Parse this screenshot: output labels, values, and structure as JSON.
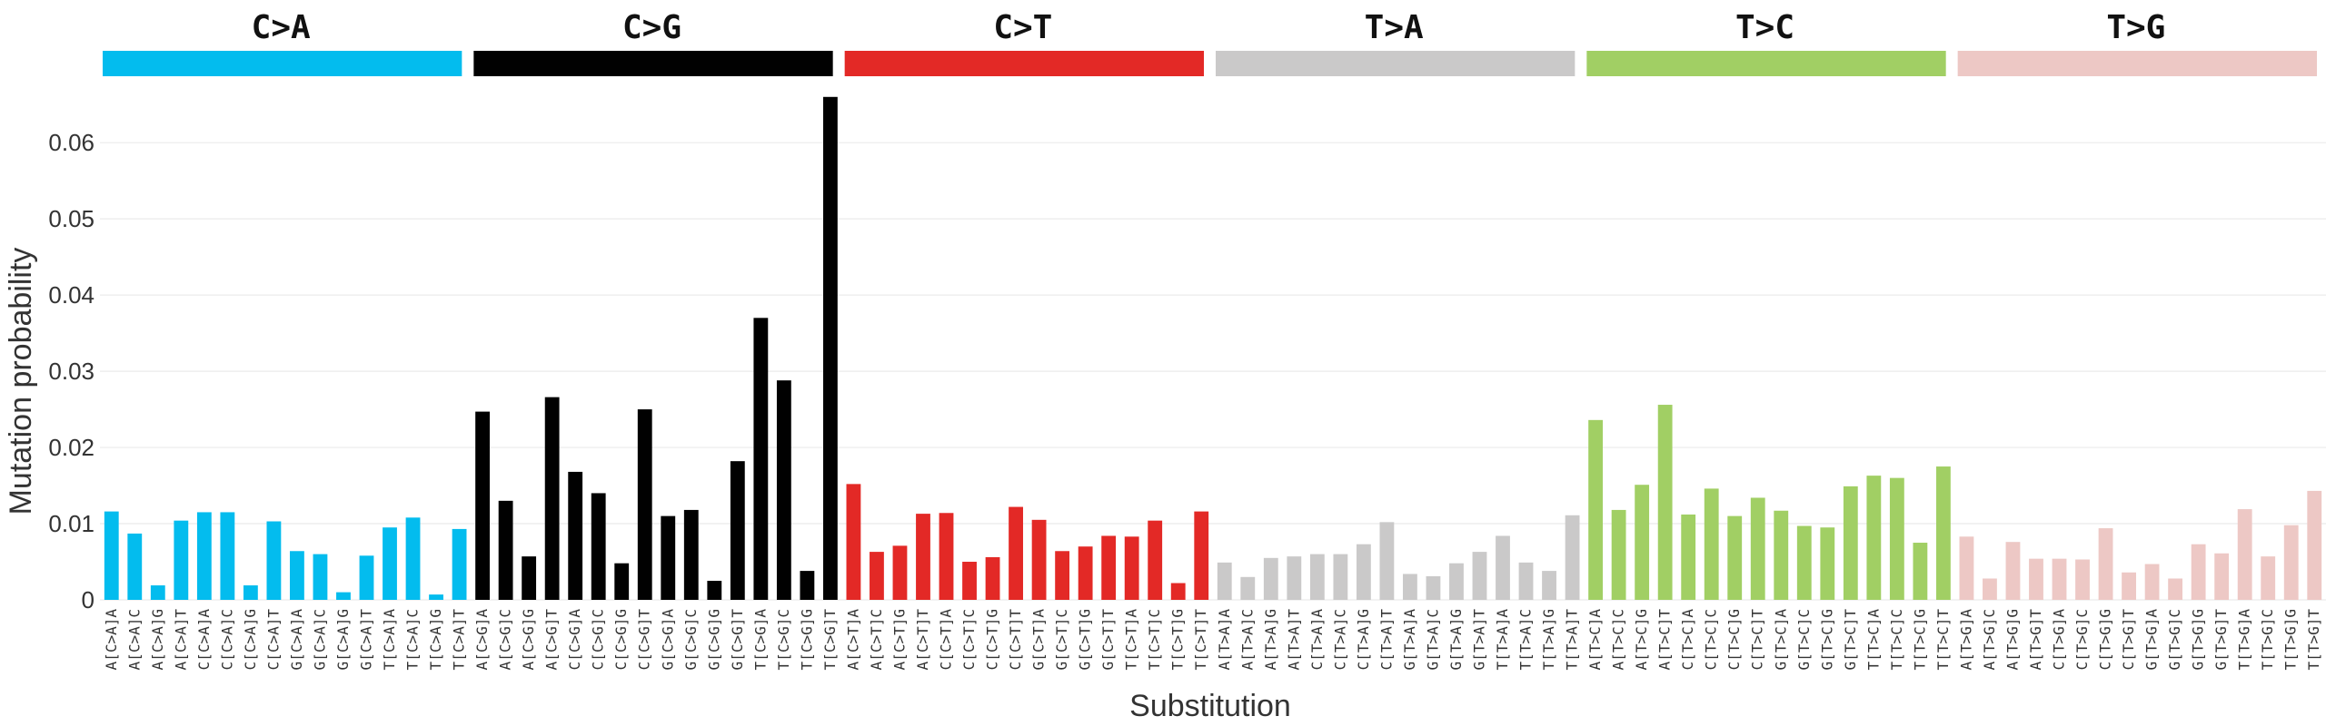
{
  "chart_data": {
    "type": "bar",
    "xlabel": "Substitution",
    "ylabel": "Mutation probability",
    "ylim": [
      0,
      0.068
    ],
    "yticks": [
      0,
      0.01,
      0.02,
      0.03,
      0.04,
      0.05,
      0.06
    ],
    "ytick_labels": [
      "0",
      "0.01",
      "0.02",
      "0.03",
      "0.04",
      "0.05",
      "0.06"
    ],
    "grid": true,
    "groups": [
      {
        "name": "C>A",
        "color": "#03BCEE",
        "categories": [
          "A[C>A]A",
          "A[C>A]C",
          "A[C>A]G",
          "A[C>A]T",
          "C[C>A]A",
          "C[C>A]C",
          "C[C>A]G",
          "C[C>A]T",
          "G[C>A]A",
          "G[C>A]C",
          "G[C>A]G",
          "G[C>A]T",
          "T[C>A]A",
          "T[C>A]C",
          "T[C>A]G",
          "T[C>A]T"
        ],
        "values": [
          0.0116,
          0.0087,
          0.0019,
          0.0104,
          0.0115,
          0.0115,
          0.0019,
          0.0103,
          0.0064,
          0.006,
          0.001,
          0.0058,
          0.0095,
          0.0108,
          0.0007,
          0.0093
        ]
      },
      {
        "name": "C>G",
        "color": "#010101",
        "categories": [
          "A[C>G]A",
          "A[C>G]C",
          "A[C>G]G",
          "A[C>G]T",
          "C[C>G]A",
          "C[C>G]C",
          "C[C>G]G",
          "C[C>G]T",
          "G[C>G]A",
          "G[C>G]C",
          "G[C>G]G",
          "G[C>G]T",
          "T[C>G]A",
          "T[C>G]C",
          "T[C>G]G",
          "T[C>G]T"
        ],
        "values": [
          0.0247,
          0.013,
          0.0057,
          0.0266,
          0.0168,
          0.014,
          0.0048,
          0.025,
          0.011,
          0.0118,
          0.0025,
          0.0182,
          0.037,
          0.0288,
          0.0038,
          0.066
        ]
      },
      {
        "name": "C>T",
        "color": "#E32926",
        "categories": [
          "A[C>T]A",
          "A[C>T]C",
          "A[C>T]G",
          "A[C>T]T",
          "C[C>T]A",
          "C[C>T]C",
          "C[C>T]G",
          "C[C>T]T",
          "G[C>T]A",
          "G[C>T]C",
          "G[C>T]G",
          "G[C>T]T",
          "T[C>T]A",
          "T[C>T]C",
          "T[C>T]G",
          "T[C>T]T"
        ],
        "values": [
          0.0152,
          0.0063,
          0.0071,
          0.0113,
          0.0114,
          0.005,
          0.0056,
          0.0122,
          0.0105,
          0.0064,
          0.007,
          0.0084,
          0.0083,
          0.0104,
          0.0022,
          0.0116
        ]
      },
      {
        "name": "T>A",
        "color": "#CAC9C9",
        "categories": [
          "A[T>A]A",
          "A[T>A]C",
          "A[T>A]G",
          "A[T>A]T",
          "C[T>A]A",
          "C[T>A]C",
          "C[T>A]G",
          "C[T>A]T",
          "G[T>A]A",
          "G[T>A]C",
          "G[T>A]G",
          "G[T>A]T",
          "T[T>A]A",
          "T[T>A]C",
          "T[T>A]G",
          "T[T>A]T"
        ],
        "values": [
          0.0049,
          0.003,
          0.0055,
          0.0057,
          0.006,
          0.006,
          0.0073,
          0.0102,
          0.0034,
          0.0031,
          0.0048,
          0.0063,
          0.0084,
          0.0049,
          0.0038,
          0.0111
        ]
      },
      {
        "name": "T>C",
        "color": "#A1CF64",
        "categories": [
          "A[T>C]A",
          "A[T>C]C",
          "A[T>C]G",
          "A[T>C]T",
          "C[T>C]A",
          "C[T>C]C",
          "C[T>C]G",
          "C[T>C]T",
          "G[T>C]A",
          "G[T>C]C",
          "G[T>C]G",
          "G[T>C]T",
          "T[T>C]A",
          "T[T>C]C",
          "T[T>C]G",
          "T[T>C]T"
        ],
        "values": [
          0.0236,
          0.0118,
          0.0151,
          0.0256,
          0.0112,
          0.0146,
          0.011,
          0.0134,
          0.0117,
          0.0097,
          0.0095,
          0.0149,
          0.0163,
          0.016,
          0.0075,
          0.0175
        ]
      },
      {
        "name": "T>G",
        "color": "#EDC8C5",
        "categories": [
          "A[T>G]A",
          "A[T>G]C",
          "A[T>G]G",
          "A[T>G]T",
          "C[T>G]A",
          "C[T>G]C",
          "C[T>G]G",
          "C[T>G]T",
          "G[T>G]A",
          "G[T>G]C",
          "G[T>G]G",
          "G[T>G]T",
          "T[T>G]A",
          "T[T>G]C",
          "T[T>G]G",
          "T[T>G]T"
        ],
        "values": [
          0.0083,
          0.0028,
          0.0076,
          0.0054,
          0.0054,
          0.0053,
          0.0094,
          0.0036,
          0.0047,
          0.0028,
          0.0073,
          0.0061,
          0.0119,
          0.0057,
          0.0098,
          0.0143
        ]
      }
    ]
  }
}
